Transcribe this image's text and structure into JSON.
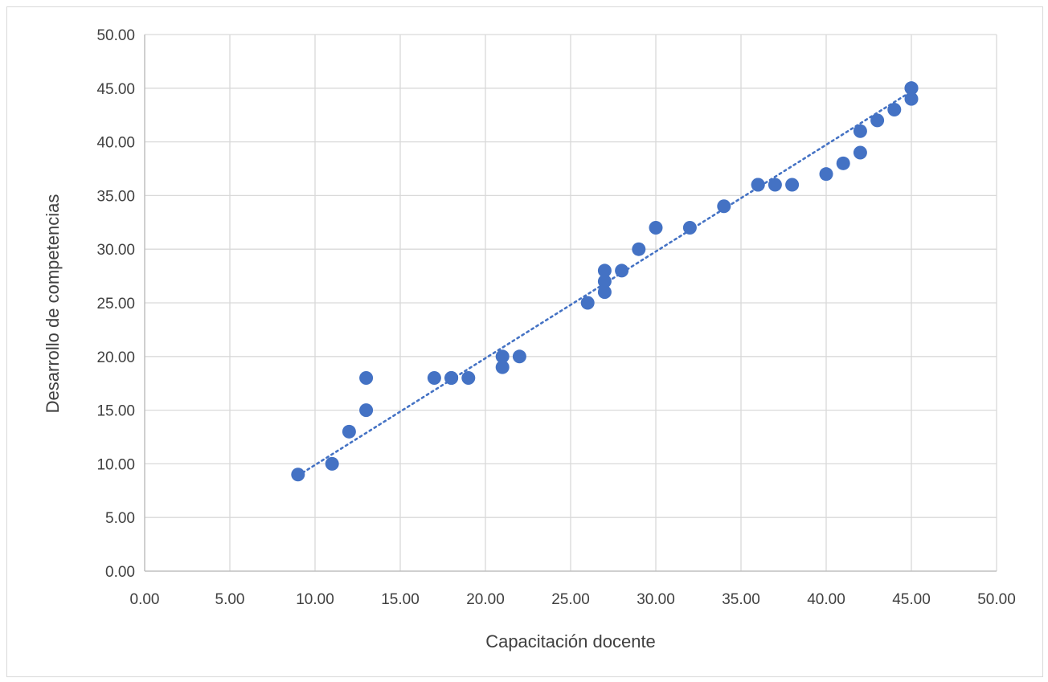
{
  "chart_data": {
    "type": "scatter",
    "title": "",
    "xlabel": "Capacitación docente",
    "ylabel": "Desarrollo de competencias",
    "xlim": [
      0,
      50
    ],
    "ylim": [
      0,
      50
    ],
    "x_ticks": [
      "0.00",
      "5.00",
      "10.00",
      "15.00",
      "20.00",
      "25.00",
      "30.00",
      "35.00",
      "40.00",
      "45.00",
      "50.00"
    ],
    "y_ticks": [
      "0.00",
      "5.00",
      "10.00",
      "15.00",
      "20.00",
      "25.00",
      "30.00",
      "35.00",
      "40.00",
      "45.00",
      "50.00"
    ],
    "grid": true,
    "legend": "none",
    "series": [
      {
        "color": "#4472c4",
        "points": [
          [
            9,
            9
          ],
          [
            11,
            10
          ],
          [
            12,
            13
          ],
          [
            13,
            15
          ],
          [
            13,
            18
          ],
          [
            17,
            18
          ],
          [
            18,
            18
          ],
          [
            18,
            18
          ],
          [
            19,
            18
          ],
          [
            21,
            19
          ],
          [
            21,
            20
          ],
          [
            22,
            20
          ],
          [
            26,
            25
          ],
          [
            27,
            26
          ],
          [
            27,
            27
          ],
          [
            27,
            28
          ],
          [
            28,
            28
          ],
          [
            29,
            30
          ],
          [
            30,
            32
          ],
          [
            32,
            32
          ],
          [
            34,
            34
          ],
          [
            36,
            36
          ],
          [
            36,
            36
          ],
          [
            37,
            36
          ],
          [
            38,
            36
          ],
          [
            40,
            37
          ],
          [
            41,
            38
          ],
          [
            42,
            39
          ],
          [
            42,
            41
          ],
          [
            43,
            42
          ],
          [
            44,
            43
          ],
          [
            45,
            44
          ],
          [
            45,
            45
          ],
          [
            45,
            45
          ]
        ]
      }
    ],
    "trendline": {
      "type": "linear",
      "style": "dotted",
      "color": "#4472c4",
      "x_range": [
        9,
        45
      ],
      "y_at_start": 8.9,
      "y_at_end": 44.7
    }
  }
}
